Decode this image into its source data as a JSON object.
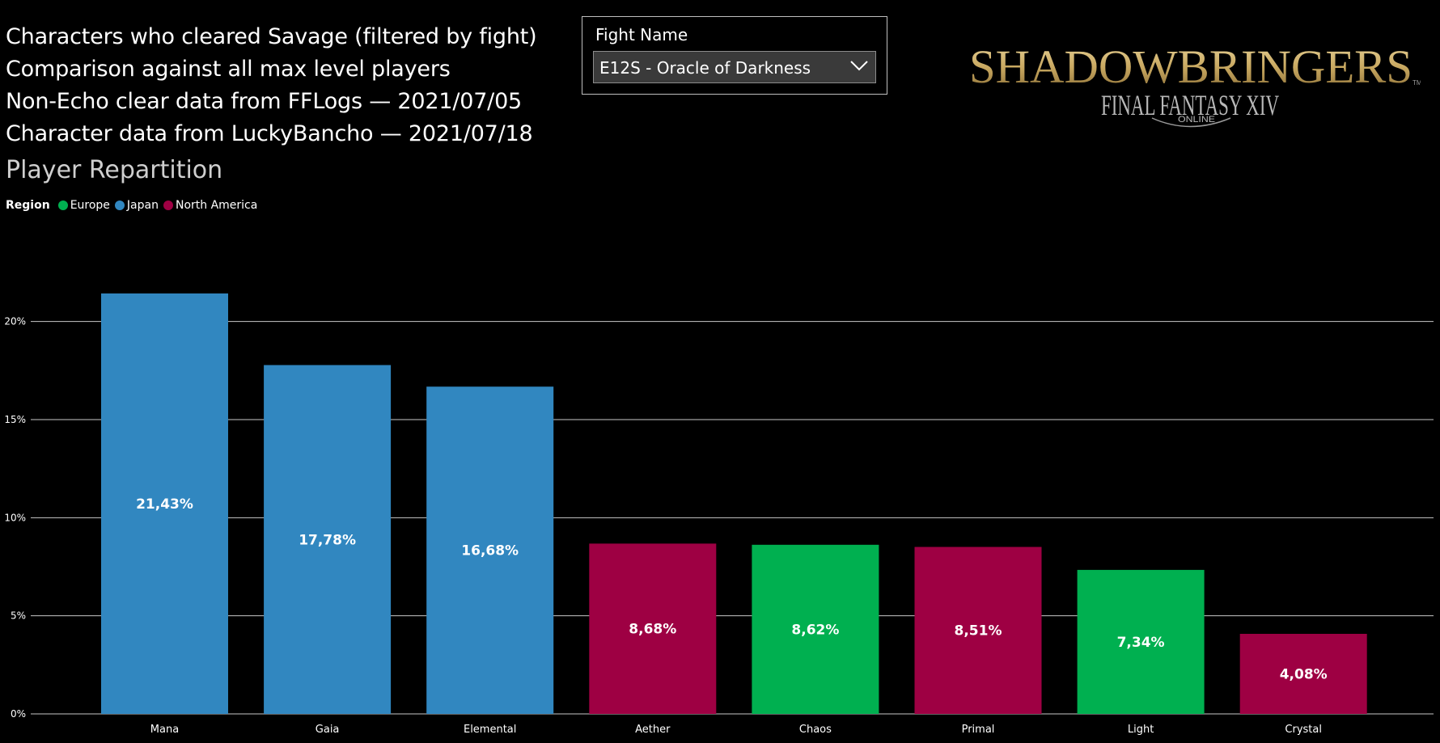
{
  "info": {
    "lines": [
      "Characters who cleared Savage (filtered by fight)",
      "Comparison against all max level players",
      "Non-Echo clear data from FFLogs — 2021/07/05",
      "Character data from LuckyBancho — 2021/07/18"
    ]
  },
  "slicer": {
    "title": "Fight Name",
    "selected": "E12S - Oracle of Darkness",
    "icon": "chevron-down-icon"
  },
  "logo": {
    "line1": "SHADOWBRINGERS",
    "line2": "FINAL FANTASY XIV",
    "line3": "ONLINE",
    "tm": "TM",
    "color": "#c9a961"
  },
  "chart_data": {
    "type": "bar",
    "title": "Player Repartition",
    "legend": {
      "title": "Region",
      "placement": "top-left",
      "entries": [
        {
          "name": "Europe",
          "color": "#00b050"
        },
        {
          "name": "Japan",
          "color": "#3187c0"
        },
        {
          "name": "North America",
          "color": "#9e0043"
        }
      ]
    },
    "categories": [
      "Mana",
      "Gaia",
      "Elemental",
      "Aether",
      "Chaos",
      "Primal",
      "Light",
      "Crystal"
    ],
    "values": [
      21.43,
      17.78,
      16.68,
      8.68,
      8.62,
      8.51,
      7.34,
      4.08
    ],
    "data_labels": [
      "21,43%",
      "17,78%",
      "16,68%",
      "8,68%",
      "8,62%",
      "8,51%",
      "7,34%",
      "4,08%"
    ],
    "regions": [
      "Japan",
      "Japan",
      "Japan",
      "North America",
      "Europe",
      "North America",
      "Europe",
      "North America"
    ],
    "ylim": [
      0,
      22.5
    ],
    "yticks": [
      0,
      5,
      10,
      15,
      20
    ],
    "ytick_labels": [
      "0%",
      "5%",
      "10%",
      "15%",
      "20%"
    ],
    "grid": true
  }
}
